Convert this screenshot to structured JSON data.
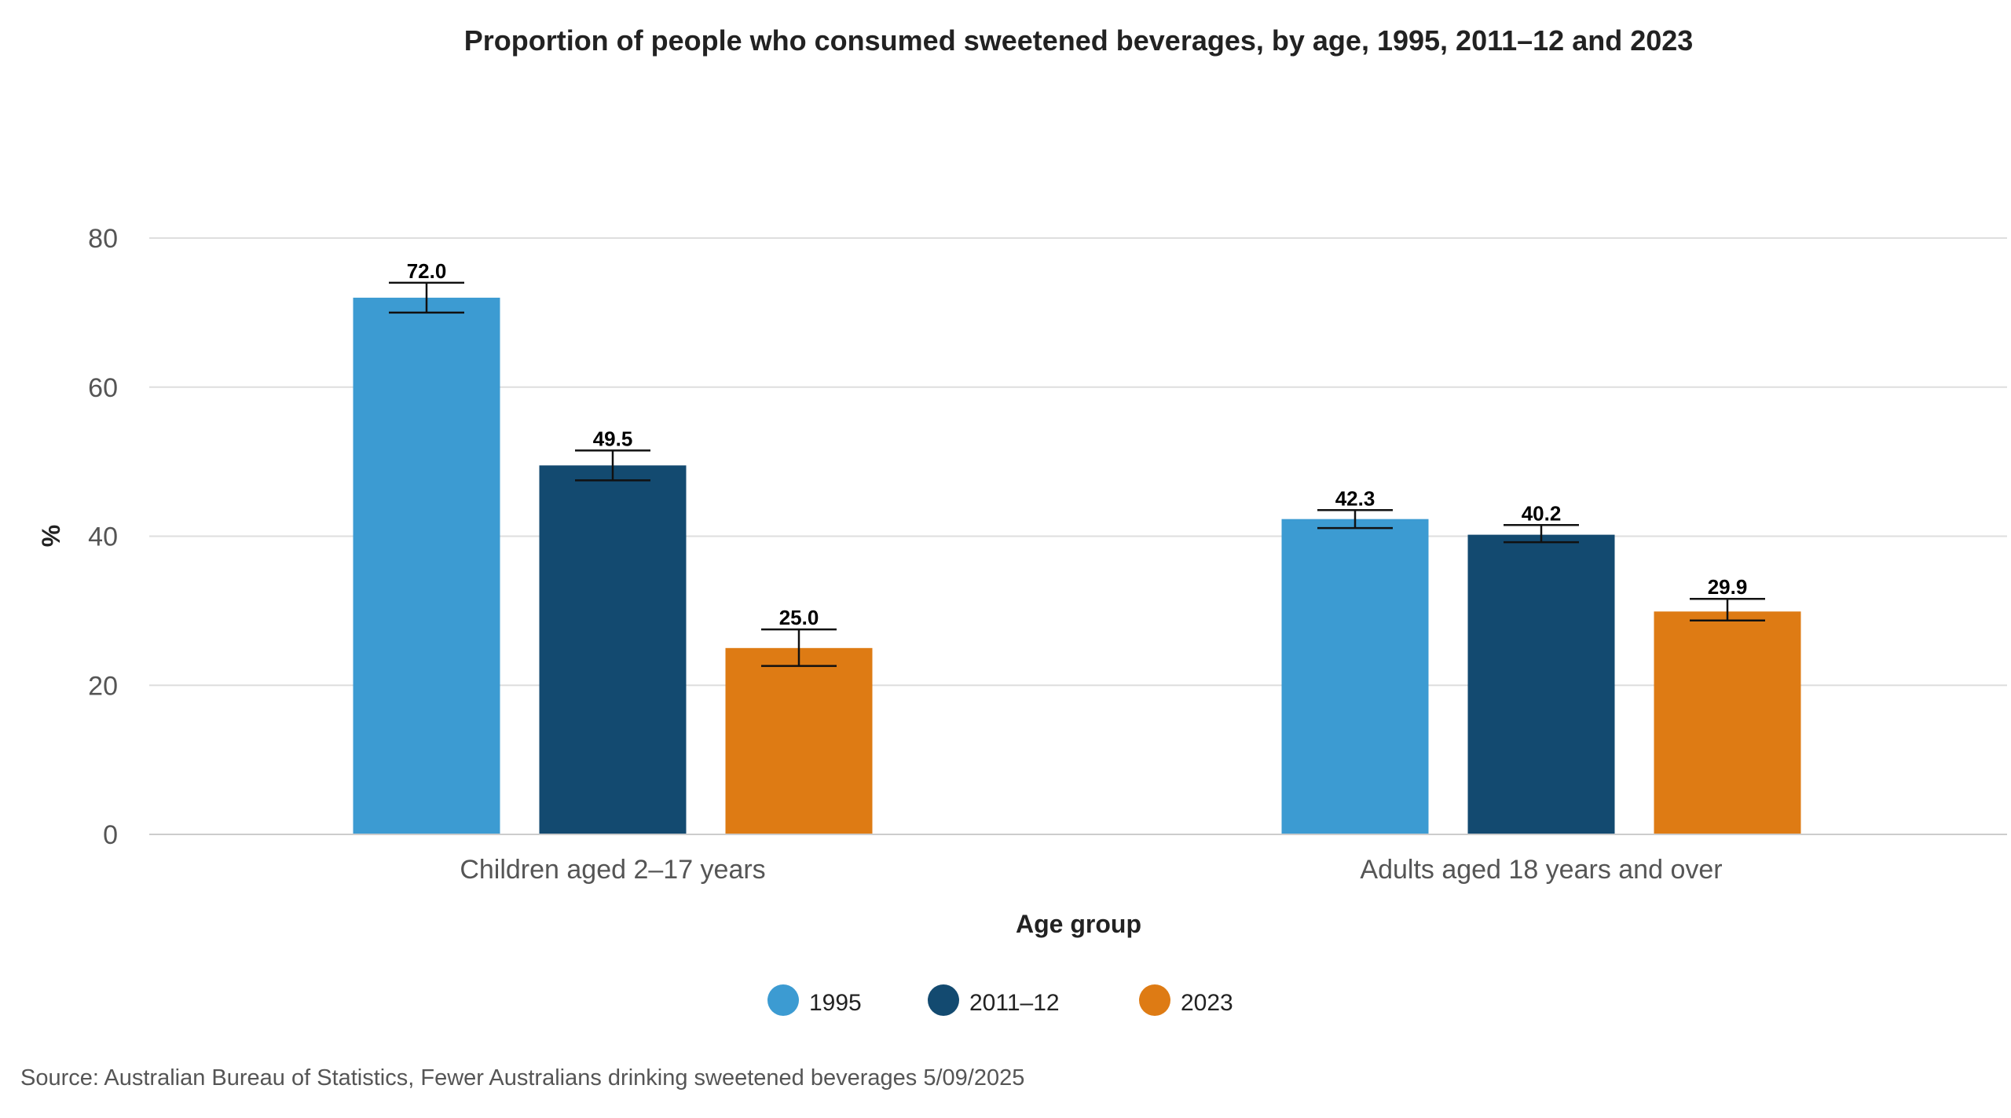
{
  "chart_data": {
    "type": "bar",
    "title": "Proportion of people who consumed sweetened beverages, by age, 1995, 2011–12 and 2023",
    "xlabel": "Age group",
    "ylabel": "%",
    "ylim": [
      0,
      80
    ],
    "yticks": [
      "0",
      "20",
      "40",
      "60",
      "80"
    ],
    "grid": true,
    "legend_position": "bottom",
    "categories": [
      "Children aged 2–17 years",
      "Adults aged 18 years and over"
    ],
    "series": [
      {
        "name": "1995",
        "color": "#3c9bd2",
        "values": [
          72.0,
          42.3
        ],
        "labels": [
          "72.0",
          "42.3"
        ],
        "error_low": [
          70.0,
          41.1
        ],
        "error_high": [
          74.0,
          43.5
        ]
      },
      {
        "name": "2011–12",
        "color": "#134a70",
        "values": [
          49.5,
          40.2
        ],
        "labels": [
          "49.5",
          "40.2"
        ],
        "error_low": [
          47.5,
          39.2
        ],
        "error_high": [
          51.5,
          41.5
        ]
      },
      {
        "name": "2023",
        "color": "#de7b14",
        "values": [
          25.0,
          29.9
        ],
        "labels": [
          "25.0",
          "29.9"
        ],
        "error_low": [
          22.6,
          28.7
        ],
        "error_high": [
          27.5,
          31.6
        ]
      }
    ]
  },
  "source": "Source: Australian Bureau of Statistics, Fewer Australians drinking sweetened beverages 5/09/2025"
}
